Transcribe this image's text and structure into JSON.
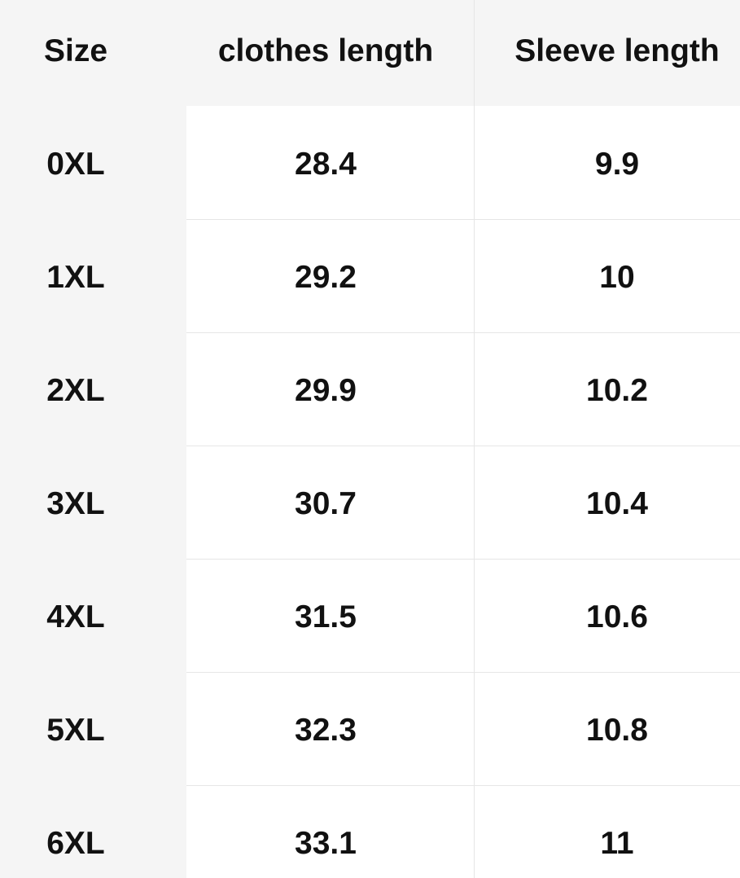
{
  "table": {
    "header": [
      "Size",
      "clothes length",
      "Sleeve length"
    ],
    "rows": [
      [
        "0XL",
        28.4,
        9.9
      ],
      [
        "1XL",
        29.2,
        10
      ],
      [
        "2XL",
        29.9,
        10.2
      ],
      [
        "3XL",
        30.7,
        10.4
      ],
      [
        "4XL",
        31.5,
        10.6
      ],
      [
        "5XL",
        32.3,
        10.8
      ],
      [
        "6XL",
        33.1,
        11
      ]
    ]
  }
}
